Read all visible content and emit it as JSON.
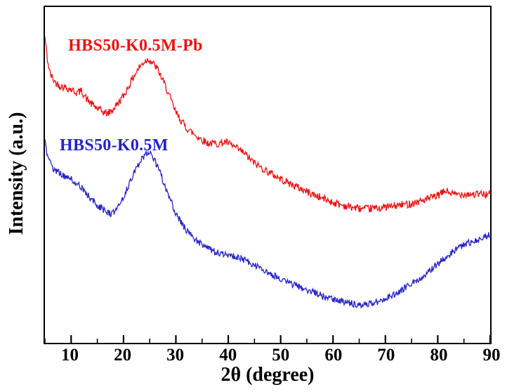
{
  "chart_data": {
    "type": "line",
    "title": "",
    "xlabel": "2θ (degree)",
    "ylabel": "Intensity (a.u.)",
    "xlim": [
      5,
      90
    ],
    "ylim": [
      0,
      100
    ],
    "x_ticks": [
      10,
      20,
      30,
      40,
      50,
      60,
      70,
      80,
      90
    ],
    "minor_tick_step": 5,
    "grid": false,
    "legend_position": "inline-labels",
    "noise": {
      "seed": 42,
      "step": 0.12
    },
    "series": [
      {
        "name": "HBS50-K0.5M-Pb",
        "color": "#ee1111",
        "noise_amplitude": 1.15,
        "label_pos": {
          "fx": 0.052,
          "fy": 0.087
        },
        "anchors_x": [
          5,
          5.5,
          6,
          7,
          8,
          9,
          10,
          11,
          12,
          13,
          14,
          15,
          16,
          17,
          18,
          19,
          20,
          21,
          22,
          23,
          24,
          24.8,
          25.5,
          26.5,
          28,
          30,
          32,
          34,
          36,
          38,
          39.5,
          41,
          43,
          45,
          47,
          50,
          53,
          56,
          60,
          63,
          66,
          69,
          72,
          75,
          78,
          80,
          81.5,
          83,
          85,
          87,
          90
        ],
        "anchors_y": [
          91,
          84,
          80,
          77.5,
          76.5,
          76,
          75.5,
          74.5,
          75,
          72.5,
          71,
          69.8,
          68.8,
          68.3,
          69.5,
          71.5,
          73.5,
          76.5,
          79.5,
          82,
          83.8,
          84.5,
          83.5,
          81.5,
          76.5,
          68.5,
          64,
          61.5,
          59.5,
          59.3,
          59.8,
          58.5,
          56.5,
          53.5,
          51.5,
          48.8,
          46.5,
          44.3,
          41.8,
          40.5,
          39.8,
          40.2,
          40.8,
          41.5,
          42.8,
          43.8,
          45.3,
          44.2,
          44.4,
          44.2,
          44.3
        ]
      },
      {
        "name": "HBS50-K0.5M",
        "color": "#2323c8",
        "noise_amplitude": 1.0,
        "label_pos": {
          "fx": 0.033,
          "fy": 0.382
        },
        "anchors_x": [
          5,
          5.5,
          6.5,
          8,
          9,
          10,
          11,
          12,
          13,
          14,
          15,
          16,
          17,
          17.8,
          19,
          20,
          21,
          22,
          23,
          24,
          24.6,
          25.4,
          26.5,
          28,
          30,
          32,
          34,
          36,
          38,
          40,
          42,
          44,
          46,
          48,
          50,
          53,
          56,
          59,
          62,
          64.5,
          67,
          69,
          71,
          73,
          75,
          77,
          79,
          81,
          83,
          85,
          87,
          90
        ],
        "anchors_y": [
          61,
          55,
          52,
          50.3,
          49.5,
          48.8,
          47.5,
          46,
          44.2,
          42.5,
          41,
          39.8,
          38.8,
          38.3,
          40.5,
          43.5,
          47,
          50.5,
          53.5,
          55.8,
          56.8,
          56,
          52.5,
          46.5,
          38.5,
          33.5,
          30.5,
          28.2,
          26.8,
          26.2,
          25.4,
          24,
          22.3,
          20.6,
          19,
          17,
          15.2,
          13.4,
          12.2,
          11.4,
          11.6,
          12.4,
          13.8,
          15.6,
          17.6,
          19.8,
          22.2,
          24.8,
          27.4,
          29.2,
          30.4,
          32.2
        ]
      }
    ]
  }
}
